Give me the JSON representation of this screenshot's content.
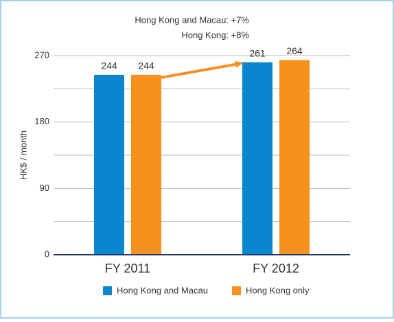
{
  "chart_data": {
    "type": "bar",
    "ylabel": "HK$ / month",
    "annotations": [
      "Hong Kong and Macau: +7%",
      "Hong Kong: +8%"
    ],
    "categories": [
      "FY 2011",
      "FY 2012"
    ],
    "series": [
      {
        "name": "Hong Kong and Macau",
        "color": "#0a86cf",
        "values": [
          244,
          261
        ]
      },
      {
        "name": "Hong Kong only",
        "color": "#f7901e",
        "values": [
          244,
          264
        ]
      }
    ],
    "ylim": [
      0,
      270
    ],
    "yticks": [
      0,
      90,
      180,
      270
    ],
    "minor_yticks": [
      45,
      135,
      225
    ],
    "grid": true,
    "legend": "bottom"
  }
}
